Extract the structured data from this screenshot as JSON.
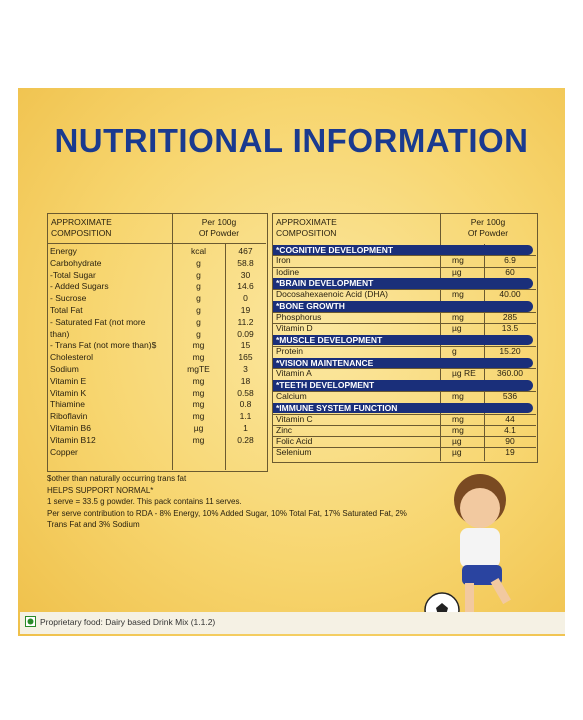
{
  "header": {
    "title": "NUTRITIONAL INFORMATION"
  },
  "left_table": {
    "header": {
      "name": "APPROXIMATE\nCOMPOSITION",
      "per": "Per 100g\nOf Powder"
    },
    "rows": [
      [
        "Energy",
        "kcal",
        "467"
      ],
      [
        "Carbohydrate",
        "g",
        "58.8"
      ],
      [
        "-Total Sugar",
        "g",
        "30"
      ],
      [
        " - Added Sugars",
        "g",
        "14.6"
      ],
      [
        " - Sucrose",
        "g",
        "0"
      ],
      [
        "Total Fat",
        "g",
        "19"
      ],
      [
        " - Saturated Fat (not more",
        "g",
        "11.2"
      ],
      [
        "than)",
        "g",
        "0.09"
      ],
      [
        " - Trans Fat (not more than)$",
        "mg",
        "15"
      ],
      [
        "Cholesterol",
        "mg",
        "165"
      ],
      [
        "Sodium",
        "mgTE",
        "3"
      ],
      [
        "Vitamin E",
        "mg",
        "18"
      ],
      [
        "Vitamin K",
        "mg",
        "0.58"
      ],
      [
        "Thiamine",
        "mg",
        "0.8"
      ],
      [
        "Riboflavin",
        "mg",
        "1.1"
      ],
      [
        "Vitamin B6",
        "µg",
        "1"
      ],
      [
        "Vitamin B12",
        "mg",
        "0.28"
      ],
      [
        "Copper",
        "",
        ""
      ]
    ]
  },
  "right_table": {
    "header": {
      "name": "APPROXIMATE\nCOMPOSITION",
      "per": "Per 100g\nOf Powder"
    },
    "sections": [
      {
        "title": "*COGNITIVE DEVELOPMENT",
        "rows": [
          [
            "Iron",
            "mg",
            "6.9"
          ],
          [
            "Iodine",
            "µg",
            "60"
          ]
        ]
      },
      {
        "title": "*BRAIN DEVELOPMENT",
        "rows": [
          [
            "Docosahexaenoic Acid (DHA)",
            "mg",
            "40.00"
          ]
        ]
      },
      {
        "title": "*BONE GROWTH",
        "rows": [
          [
            "Phosphorus",
            "mg",
            "285"
          ],
          [
            "Vitamin D",
            "µg",
            "13.5"
          ]
        ]
      },
      {
        "title": "*MUSCLE DEVELOPMENT",
        "rows": [
          [
            "Protein",
            "g",
            "15.20"
          ]
        ]
      },
      {
        "title": "*VISION MAINTENANCE",
        "rows": [
          [
            "Vitamin A",
            "µg RE",
            "360.00"
          ]
        ]
      },
      {
        "title": "*TEETH DEVELOPMENT",
        "rows": [
          [
            "Calcium",
            "mg",
            "536"
          ]
        ]
      },
      {
        "title": "*IMMUNE SYSTEM FUNCTION",
        "rows": [
          [
            "Vitamin C",
            "mg",
            "44"
          ],
          [
            "Zinc",
            "mg",
            "4.1"
          ],
          [
            "Folic Acid",
            "µg",
            "90"
          ],
          [
            "Selenium",
            "µg",
            "19"
          ]
        ]
      }
    ]
  },
  "notes": [
    "$other than naturally occurring trans fat",
    "HELPS SUPPORT NORMAL*",
    "1 serve = 33.5 g powder. This pack contains 11 serves.",
    "Per serve contribution to RDA - 8% Energy, 10% Added Sugar, 10% Total Fat, 17% Saturated Fat, 2%",
    "Trans Fat and 3% Sodium"
  ],
  "footer": "Proprietary food: Dairy based Drink Mix (1.1.2)"
}
